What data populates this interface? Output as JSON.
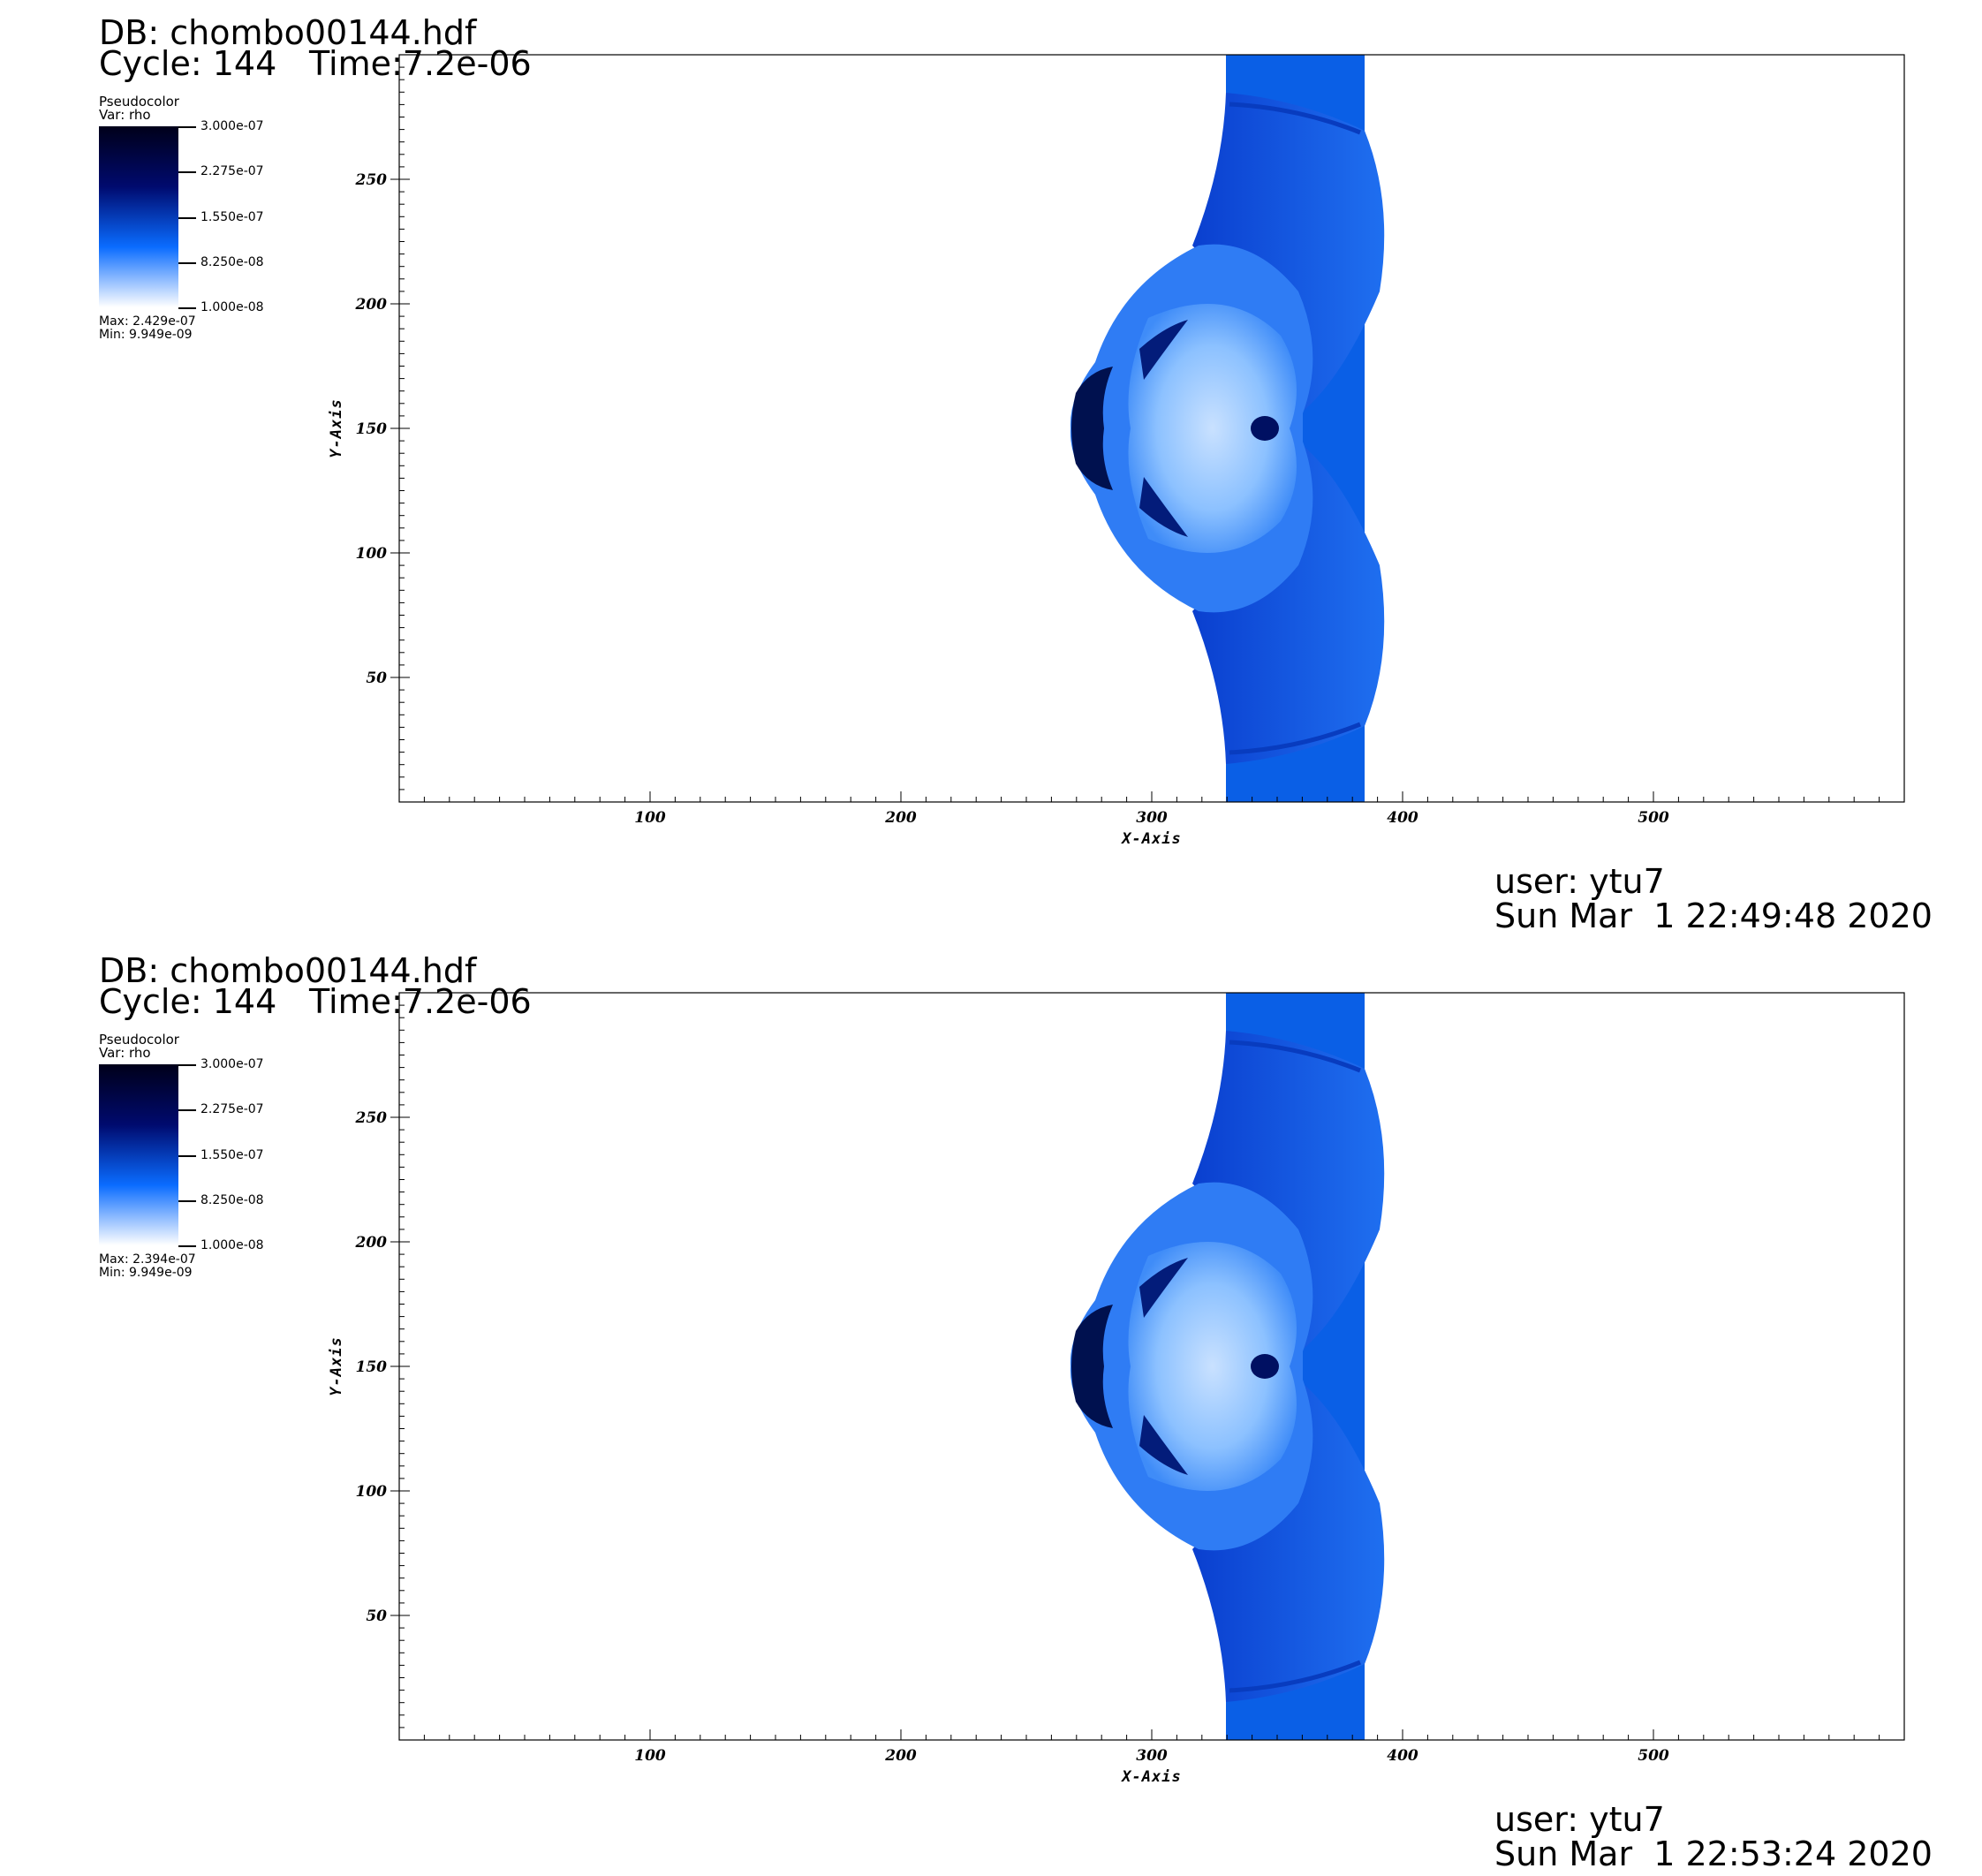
{
  "panels": [
    {
      "header": {
        "db": "DB: chombo00144.hdf",
        "cycle": "Cycle: 144",
        "time": "Time:7.2e-06"
      },
      "legend": {
        "plot_type": "Pseudocolor",
        "variable": "Var: rho",
        "ticks": [
          "3.000e-07",
          "2.275e-07",
          "1.550e-07",
          "8.250e-08",
          "1.000e-08"
        ],
        "max": "Max: 2.429e-07",
        "min": "Min: 9.949e-09"
      },
      "footer": {
        "user": "user: ytu7",
        "date": "Sun Mar  1 22:49:48 2020"
      }
    },
    {
      "header": {
        "db": "DB: chombo00144.hdf",
        "cycle": "Cycle: 144",
        "time": "Time:7.2e-06"
      },
      "legend": {
        "plot_type": "Pseudocolor",
        "variable": "Var: rho",
        "ticks": [
          "3.000e-07",
          "2.275e-07",
          "1.550e-07",
          "8.250e-08",
          "1.000e-08"
        ],
        "max": "Max: 2.394e-07",
        "min": "Min: 9.949e-09"
      },
      "footer": {
        "user": "user: ytu7",
        "date": "Sun Mar  1 22:53:24 2020"
      }
    }
  ],
  "chart_data": [
    {
      "type": "heatmap",
      "variable": "rho",
      "colormap": [
        "#ffffff",
        "#0a6cff",
        "#000a6e",
        "#00001a"
      ],
      "color_range": [
        1e-08,
        3e-07
      ],
      "max": 2.429e-07,
      "min": 9.949e-09,
      "xlabel": "X-Axis",
      "ylabel": "Y-Axis",
      "xlim": [
        0,
        600
      ],
      "ylim": [
        0,
        300
      ],
      "xticks": [
        100,
        200,
        300,
        400,
        500
      ],
      "yticks": [
        50,
        100,
        150,
        200,
        250
      ],
      "grid": false,
      "legend_position": "top-left"
    },
    {
      "type": "heatmap",
      "variable": "rho",
      "colormap": [
        "#ffffff",
        "#0a6cff",
        "#000a6e",
        "#00001a"
      ],
      "color_range": [
        1e-08,
        3e-07
      ],
      "max": 2.394e-07,
      "min": 9.949e-09,
      "xlabel": "X-Axis",
      "ylabel": "Y-Axis",
      "xlim": [
        0,
        600
      ],
      "ylim": [
        0,
        300
      ],
      "xticks": [
        100,
        200,
        300,
        400,
        500
      ],
      "yticks": [
        50,
        100,
        150,
        200,
        250
      ],
      "grid": false,
      "legend_position": "top-left"
    }
  ]
}
